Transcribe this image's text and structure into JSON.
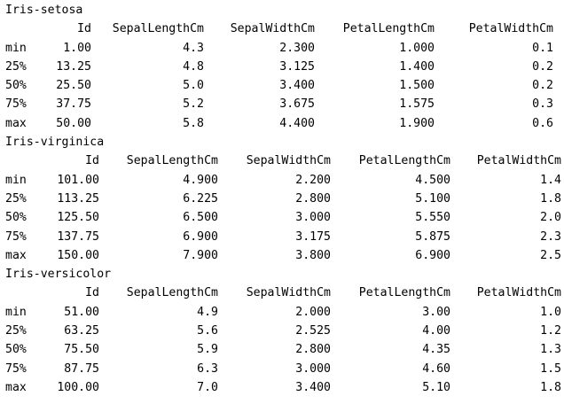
{
  "groups": [
    {
      "title": "Iris-setosa",
      "columns": [
        "",
        "Id",
        "SepalLengthCm",
        "SepalWidthCm",
        "PetalLengthCm",
        "PetalWidthCm"
      ],
      "rows": [
        [
          "min",
          "1.00",
          "4.3",
          "2.300",
          "1.000",
          "0.1"
        ],
        [
          "25%",
          "13.25",
          "4.8",
          "3.125",
          "1.400",
          "0.2"
        ],
        [
          "50%",
          "25.50",
          "5.0",
          "3.400",
          "1.500",
          "0.2"
        ],
        [
          "75%",
          "37.75",
          "5.2",
          "3.675",
          "1.575",
          "0.3"
        ],
        [
          "max",
          "50.00",
          "5.8",
          "4.400",
          "1.900",
          "0.6"
        ]
      ]
    },
    {
      "title": "Iris-virginica",
      "columns": [
        "",
        "Id",
        "SepalLengthCm",
        "SepalWidthCm",
        "PetalLengthCm",
        "PetalWidthCm"
      ],
      "rows": [
        [
          "min",
          "101.00",
          "4.900",
          "2.200",
          "4.500",
          "1.4"
        ],
        [
          "25%",
          "113.25",
          "6.225",
          "2.800",
          "5.100",
          "1.8"
        ],
        [
          "50%",
          "125.50",
          "6.500",
          "3.000",
          "5.550",
          "2.0"
        ],
        [
          "75%",
          "137.75",
          "6.900",
          "3.175",
          "5.875",
          "2.3"
        ],
        [
          "max",
          "150.00",
          "7.900",
          "3.800",
          "6.900",
          "2.5"
        ]
      ]
    },
    {
      "title": "Iris-versicolor",
      "columns": [
        "",
        "Id",
        "SepalLengthCm",
        "SepalWidthCm",
        "PetalLengthCm",
        "PetalWidthCm"
      ],
      "rows": [
        [
          "min",
          "51.00",
          "4.9",
          "2.000",
          "3.00",
          "1.0"
        ],
        [
          "25%",
          "63.25",
          "5.6",
          "2.525",
          "4.00",
          "1.2"
        ],
        [
          "50%",
          "75.50",
          "5.9",
          "2.800",
          "4.35",
          "1.3"
        ],
        [
          "75%",
          "87.75",
          "6.3",
          "3.000",
          "4.60",
          "1.5"
        ],
        [
          "max",
          "100.00",
          "7.0",
          "3.400",
          "5.10",
          "1.8"
        ]
      ]
    }
  ]
}
